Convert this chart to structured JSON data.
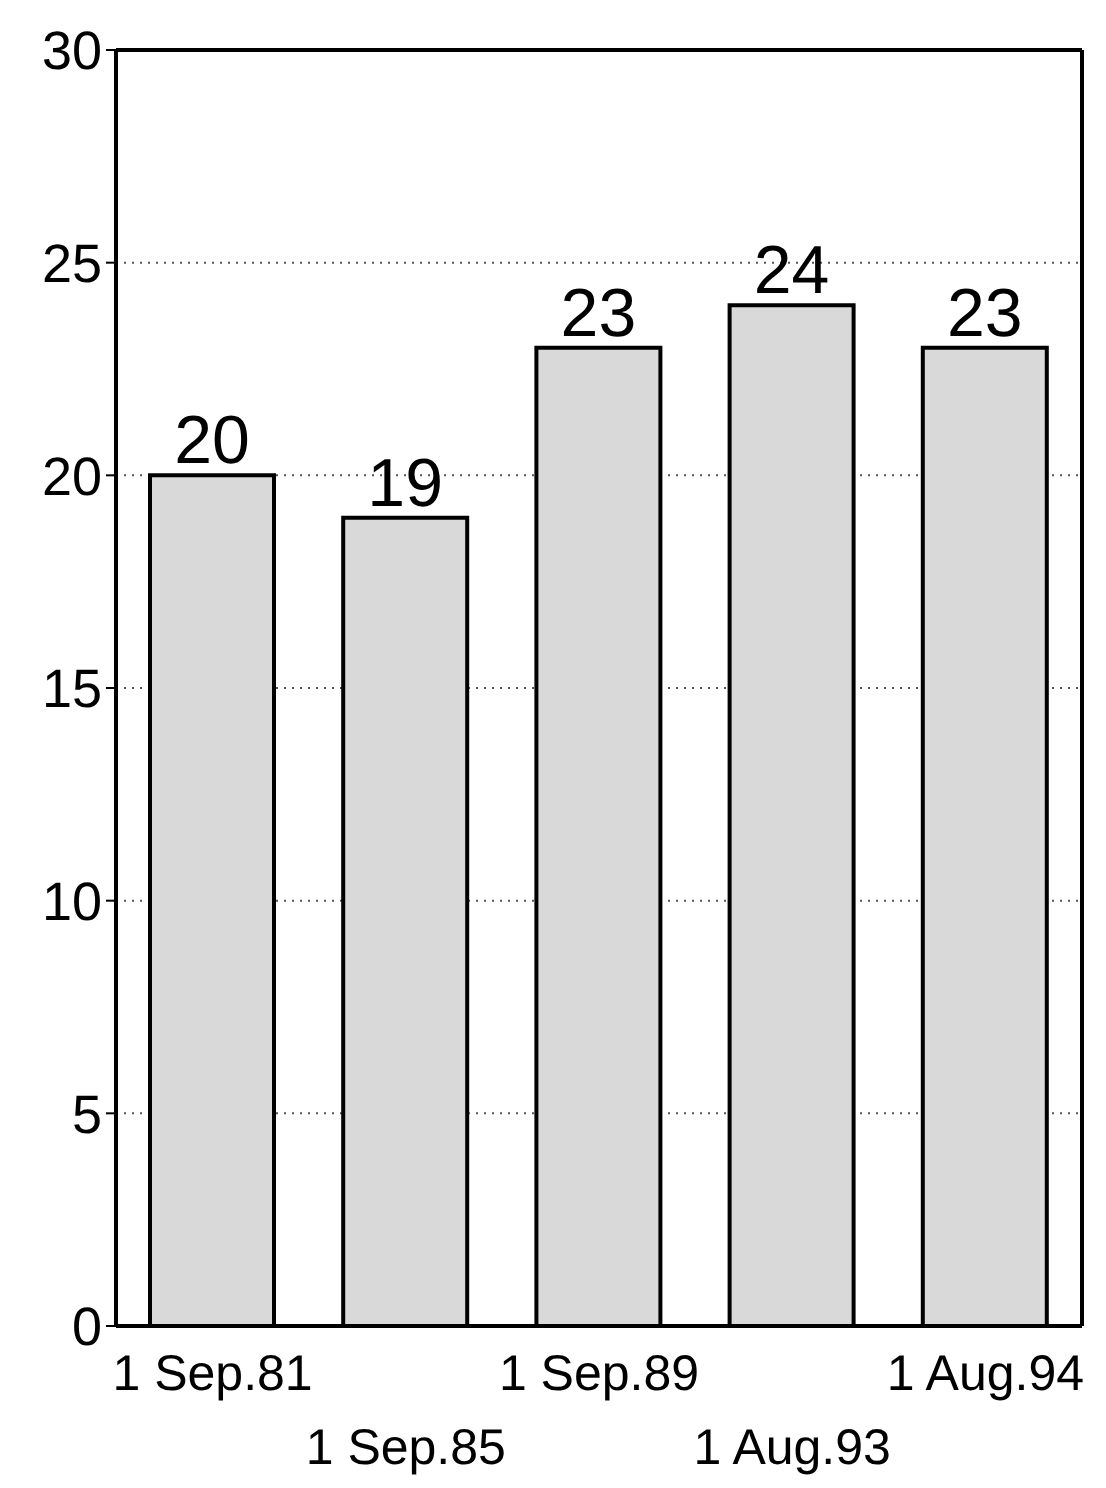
{
  "chart_data": {
    "type": "bar",
    "categories": [
      "1 Sep.81",
      "1 Sep.85",
      "1 Sep.89",
      "1 Aug.93",
      "1 Aug.94"
    ],
    "values": [
      20,
      19,
      23,
      24,
      23
    ],
    "color": "#d9d9d9",
    "ylim": [
      0,
      30
    ],
    "yticks": [
      0,
      5,
      10,
      15,
      20,
      25,
      30
    ],
    "grid": "y",
    "data_labels": true
  }
}
